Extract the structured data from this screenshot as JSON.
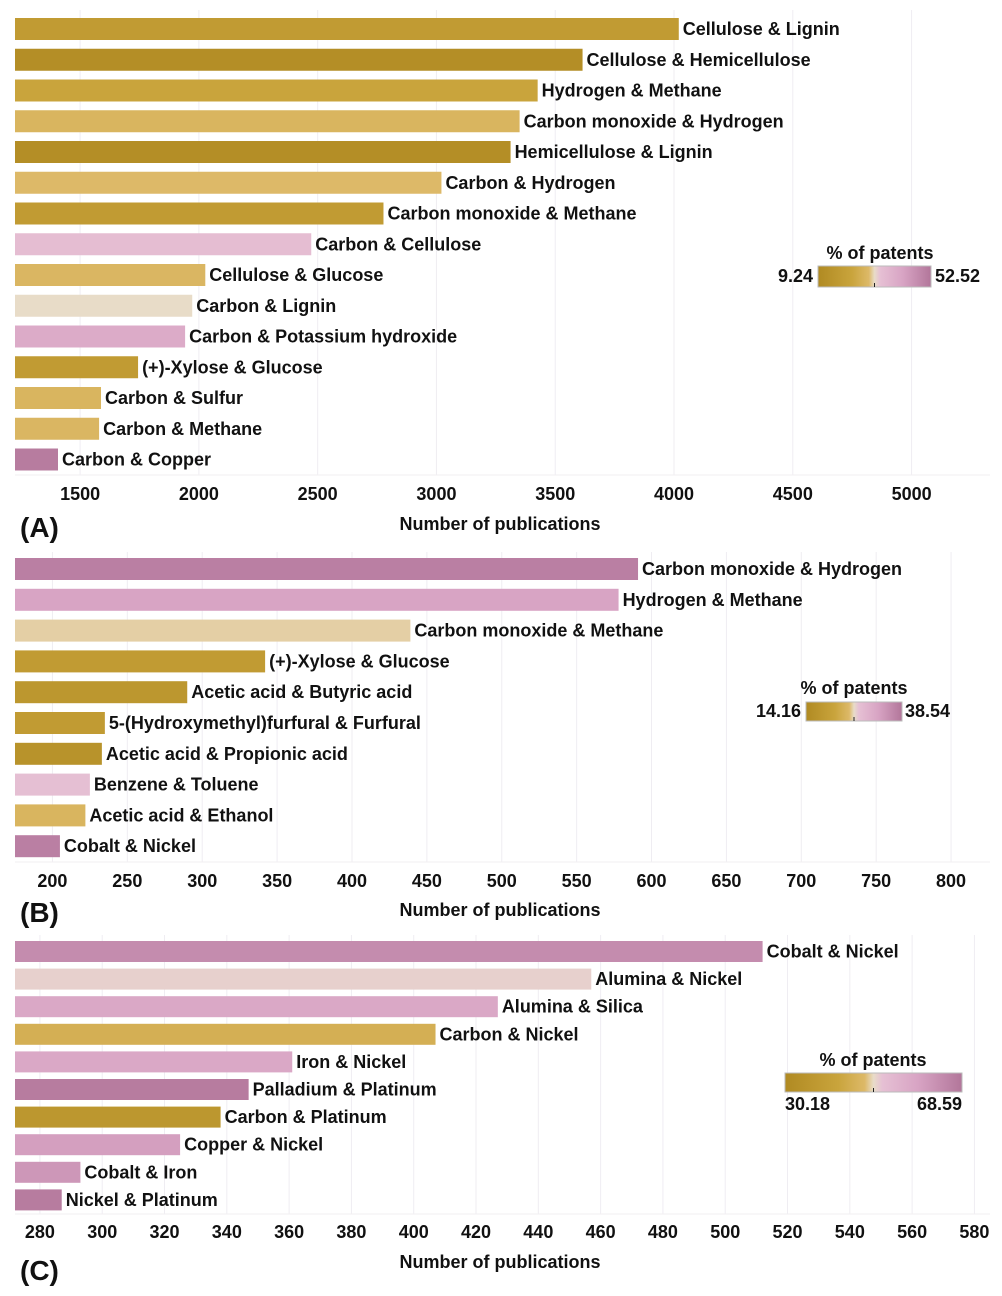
{
  "chart_data": [
    {
      "type": "bar",
      "orientation": "horizontal",
      "panel_label": "(A)",
      "xlabel": "Number of publications",
      "xlim": [
        1226,
        5330
      ],
      "xticks": [
        1500,
        2000,
        2500,
        3000,
        3500,
        4000,
        4500,
        5000
      ],
      "grid": true,
      "legend": {
        "title": "% of patents",
        "min": 9.24,
        "max": 52.52,
        "placement": "right"
      },
      "categories": [
        "Cellulose & Lignin",
        "Cellulose & Hemicellulose",
        "Hydrogen & Methane",
        "Carbon monoxide & Hydrogen",
        "Hemicellulose & Lignin",
        "Carbon & Hydrogen",
        "Carbon monoxide & Methane",
        "Carbon & Cellulose",
        "Cellulose & Glucose",
        "Carbon & Lignin",
        "Carbon & Potassium hydroxide",
        "(+)-Xylose & Glucose",
        "Carbon & Sulfur",
        "Carbon & Methane",
        "Carbon & Copper"
      ],
      "values": [
        4020,
        3615,
        3426,
        3350,
        3312,
        3021,
        2777,
        2473,
        2027,
        1972,
        1942,
        1744,
        1588,
        1580,
        1407
      ],
      "percent_patents": [
        17.9,
        11.4,
        22.2,
        27.4,
        11.4,
        28.7,
        17.9,
        33.9,
        27.8,
        30.9,
        39.5,
        17.9,
        27.4,
        27.8,
        51.2
      ]
    },
    {
      "type": "bar",
      "orientation": "horizontal",
      "panel_label": "(B)",
      "xlabel": "Number of publications",
      "xlim": [
        175,
        826
      ],
      "xticks": [
        200,
        250,
        300,
        350,
        400,
        450,
        500,
        550,
        600,
        650,
        700,
        750,
        800
      ],
      "grid": true,
      "legend": {
        "title": "% of patents",
        "min": 14.16,
        "max": 38.54,
        "placement": "right"
      },
      "categories": [
        "Carbon monoxide & Hydrogen",
        "Hydrogen & Methane",
        "Carbon monoxide & Methane",
        "(+)-Xylose & Glucose",
        "Acetic acid & Butyric acid",
        "5-(Hydroxymethyl)furfural & Furfural",
        "Acetic acid & Propionic acid",
        "Benzene & Toluene",
        "Acetic acid & Ethanol",
        "Cobalt & Nickel"
      ],
      "values": [
        591,
        578,
        439,
        342,
        290,
        235,
        233,
        225,
        222,
        205
      ],
      "percent_patents": [
        37.3,
        32.4,
        25.9,
        19.0,
        17.8,
        19.0,
        16.6,
        27.8,
        24.4,
        37.3
      ]
    },
    {
      "type": "bar",
      "orientation": "horizontal",
      "panel_label": "(C)",
      "xlabel": "Number of publications",
      "xlim": [
        272,
        585
      ],
      "xticks": [
        280,
        300,
        320,
        340,
        360,
        380,
        400,
        420,
        440,
        460,
        480,
        500,
        520,
        540,
        560,
        580
      ],
      "grid": true,
      "legend": {
        "title": "% of patents",
        "min": 30.18,
        "max": 68.59,
        "placement": "right"
      },
      "categories": [
        "Cobalt & Nickel",
        "Alumina & Nickel",
        "Alumina & Silica",
        "Carbon & Nickel",
        "Iron & Nickel",
        "Palladium & Platinum",
        "Carbon & Platinum",
        "Copper & Nickel",
        "Cobalt & Iron",
        "Nickel & Platinum"
      ],
      "values": [
        512,
        457,
        427,
        407,
        361,
        347,
        338,
        325,
        293,
        287
      ],
      "percent_patents": [
        64.0,
        50.2,
        57.8,
        44.8,
        57.8,
        67.4,
        35.9,
        60.1,
        61.7,
        67.4
      ]
    }
  ],
  "colormap": [
    "#b08a22",
    "#c9a43c",
    "#ddb968",
    "#e8dcc8",
    "#e6c0d4",
    "#d8a4c4",
    "#b2769a"
  ]
}
